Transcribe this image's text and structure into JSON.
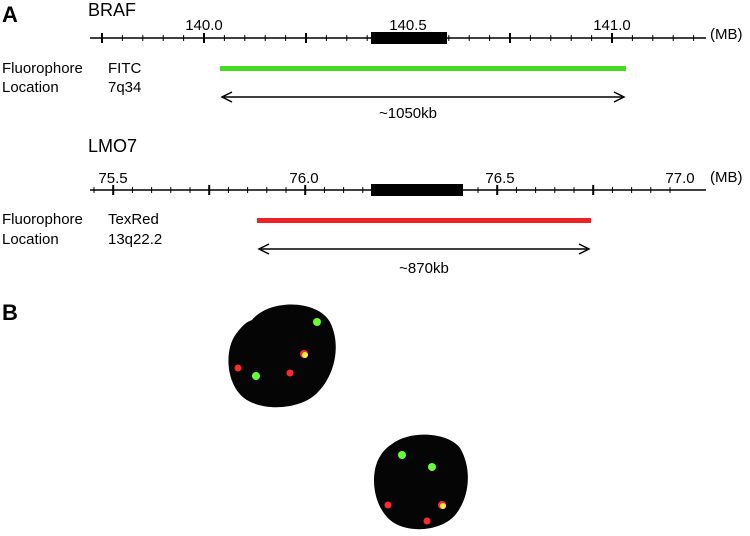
{
  "panel_a": {
    "label": "A",
    "unit": "(MB)",
    "braf": {
      "gene": "BRAF",
      "ticks": [
        "140.0",
        "140.5",
        "141.0"
      ],
      "fluorophore_label": "Fluorophore",
      "fluorophore_value": "FITC",
      "location_label": "Location",
      "location_value": "7q34",
      "size": "~1050kb",
      "probe_color": "#44dd22"
    },
    "lmo7": {
      "gene": "LMO7",
      "ticks": [
        "75.5",
        "76.0",
        "76.5",
        "77.0"
      ],
      "fluorophore_label": "Fluorophore",
      "fluorophore_value": "TexRed",
      "location_label": "Location",
      "location_value": "13q22.2",
      "size": "~870kb",
      "probe_color": "#ee2222"
    }
  },
  "panel_b": {
    "label": "B",
    "signal_colors": {
      "green": "#66ff33",
      "red": "#ff2a2a",
      "fusion": "#ffee33"
    }
  }
}
